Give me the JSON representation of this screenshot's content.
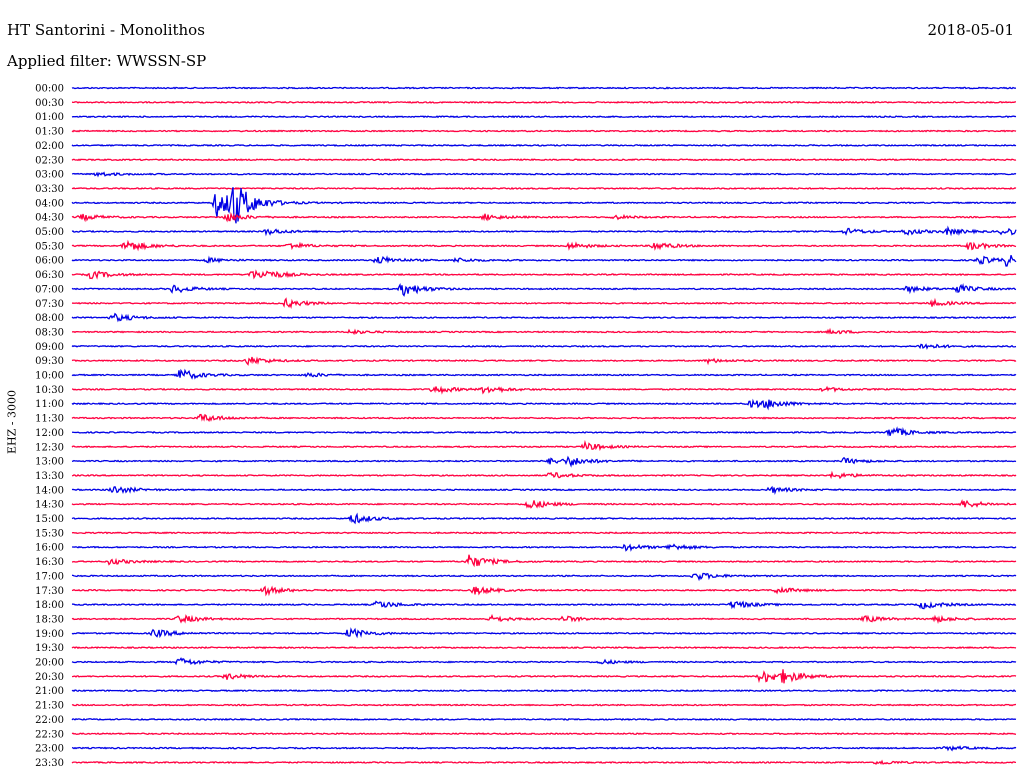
{
  "header": {
    "station": "HT Santorini - Monolithos",
    "date": "2018-05-01",
    "filter": "Applied filter: WWSSN-SP"
  },
  "chart_data": {
    "type": "line",
    "title": "HT Santorini - Monolithos",
    "ylabel": "EHZ - 3000",
    "colors": [
      "#0000e6",
      "#ff0040"
    ],
    "x_range_minutes": [
      0,
      30
    ],
    "rows": [
      {
        "label": "00:00",
        "events": []
      },
      {
        "label": "00:30",
        "events": []
      },
      {
        "label": "01:00",
        "events": []
      },
      {
        "label": "01:30",
        "events": []
      },
      {
        "label": "02:00",
        "events": []
      },
      {
        "label": "02:30",
        "events": []
      },
      {
        "label": "03:00",
        "events": [
          [
            0.8,
            2
          ]
        ]
      },
      {
        "label": "03:30",
        "events": []
      },
      {
        "label": "04:00",
        "events": [
          [
            4.6,
            14
          ],
          [
            5.1,
            20
          ]
        ]
      },
      {
        "label": "04:30",
        "events": [
          [
            0.3,
            3
          ],
          [
            4.9,
            4
          ],
          [
            13.1,
            3
          ],
          [
            17.2,
            2
          ]
        ]
      },
      {
        "label": "05:00",
        "events": [
          [
            6.2,
            3
          ],
          [
            24.6,
            3
          ],
          [
            26.5,
            3
          ],
          [
            27.8,
            3
          ],
          [
            29.6,
            4
          ]
        ]
      },
      {
        "label": "05:30",
        "events": [
          [
            1.7,
            6
          ],
          [
            6.9,
            3
          ],
          [
            15.8,
            3
          ],
          [
            18.5,
            4
          ],
          [
            28.5,
            4
          ]
        ]
      },
      {
        "label": "06:00",
        "events": [
          [
            4.3,
            2
          ],
          [
            9.7,
            4
          ],
          [
            12.2,
            2
          ],
          [
            28.8,
            4
          ],
          [
            29.7,
            5
          ]
        ]
      },
      {
        "label": "06:30",
        "events": [
          [
            0.6,
            4
          ],
          [
            5.7,
            4
          ],
          [
            6.1,
            3
          ]
        ]
      },
      {
        "label": "07:00",
        "events": [
          [
            3.2,
            4
          ],
          [
            10.5,
            7
          ],
          [
            26.5,
            3
          ],
          [
            28.1,
            4
          ]
        ]
      },
      {
        "label": "07:30",
        "events": [
          [
            6.8,
            4
          ],
          [
            27.3,
            3
          ]
        ]
      },
      {
        "label": "08:00",
        "events": [
          [
            1.3,
            4
          ]
        ]
      },
      {
        "label": "08:30",
        "events": [
          [
            8.8,
            2
          ],
          [
            24.1,
            2
          ]
        ]
      },
      {
        "label": "09:00",
        "events": [
          [
            27.0,
            3
          ]
        ]
      },
      {
        "label": "09:30",
        "events": [
          [
            5.6,
            4
          ],
          [
            20.2,
            2
          ]
        ]
      },
      {
        "label": "10:00",
        "events": [
          [
            3.4,
            6
          ],
          [
            7.5,
            2
          ]
        ]
      },
      {
        "label": "10:30",
        "events": [
          [
            11.5,
            4
          ],
          [
            13.1,
            4
          ],
          [
            23.9,
            2
          ]
        ]
      },
      {
        "label": "11:00",
        "events": [
          [
            21.6,
            4
          ],
          [
            22.1,
            3
          ]
        ]
      },
      {
        "label": "11:30",
        "events": [
          [
            4.1,
            4
          ]
        ]
      },
      {
        "label": "12:00",
        "events": [
          [
            26.0,
            5
          ]
        ]
      },
      {
        "label": "12:30",
        "events": [
          [
            16.3,
            4
          ]
        ]
      },
      {
        "label": "13:00",
        "events": [
          [
            15.8,
            4
          ],
          [
            15.2,
            3
          ],
          [
            24.5,
            3
          ]
        ]
      },
      {
        "label": "13:30",
        "events": [
          [
            15.2,
            3
          ],
          [
            24.2,
            3
          ]
        ]
      },
      {
        "label": "14:00",
        "events": [
          [
            1.3,
            4
          ],
          [
            22.2,
            3
          ]
        ]
      },
      {
        "label": "14:30",
        "events": [
          [
            14.5,
            5
          ],
          [
            28.3,
            4
          ]
        ]
      },
      {
        "label": "15:00",
        "events": [
          [
            8.9,
            5
          ]
        ]
      },
      {
        "label": "15:30",
        "events": []
      },
      {
        "label": "16:00",
        "events": [
          [
            17.6,
            3
          ],
          [
            19.0,
            3
          ]
        ]
      },
      {
        "label": "16:30",
        "events": [
          [
            12.6,
            7
          ],
          [
            1.2,
            3
          ]
        ]
      },
      {
        "label": "17:00",
        "events": [
          [
            19.8,
            4
          ]
        ]
      },
      {
        "label": "17:30",
        "events": [
          [
            6.1,
            4
          ],
          [
            12.8,
            4
          ],
          [
            22.4,
            3
          ]
        ]
      },
      {
        "label": "18:00",
        "events": [
          [
            9.7,
            4
          ],
          [
            21.0,
            4
          ],
          [
            27.0,
            4
          ]
        ]
      },
      {
        "label": "18:30",
        "events": [
          [
            3.4,
            4
          ],
          [
            13.3,
            3
          ],
          [
            15.6,
            3
          ],
          [
            25.2,
            3
          ],
          [
            27.4,
            3
          ]
        ]
      },
      {
        "label": "19:00",
        "events": [
          [
            2.6,
            4
          ],
          [
            8.8,
            5
          ]
        ]
      },
      {
        "label": "19:30",
        "events": []
      },
      {
        "label": "20:00",
        "events": [
          [
            3.4,
            4
          ],
          [
            16.8,
            2
          ]
        ]
      },
      {
        "label": "20:30",
        "events": [
          [
            4.9,
            3
          ],
          [
            21.9,
            7
          ],
          [
            22.6,
            5
          ]
        ]
      },
      {
        "label": "21:00",
        "events": []
      },
      {
        "label": "21:30",
        "events": []
      },
      {
        "label": "22:00",
        "events": []
      },
      {
        "label": "22:30",
        "events": []
      },
      {
        "label": "23:00",
        "events": [
          [
            27.8,
            2
          ]
        ]
      },
      {
        "label": "23:30",
        "events": [
          [
            25.6,
            2
          ]
        ]
      }
    ]
  }
}
